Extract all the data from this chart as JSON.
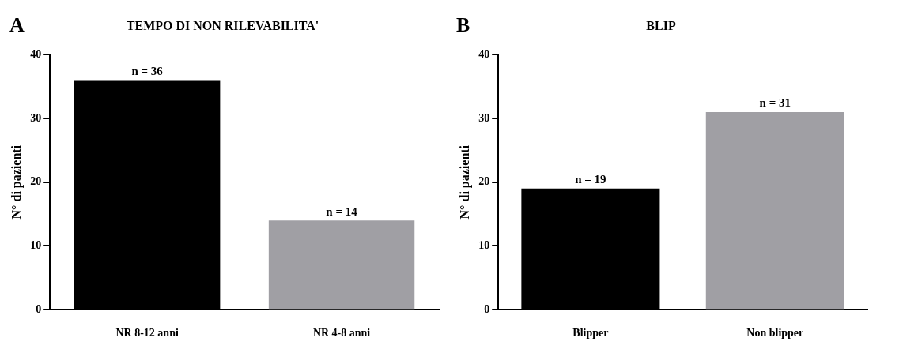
{
  "chart_data": [
    {
      "type": "bar",
      "title": "TEMPO DI NON RILEVABILITA'",
      "ylabel": "N° di pazienti",
      "categories": [
        "NR 8-12 anni",
        "NR 4-8 anni"
      ],
      "values": [
        36,
        14
      ],
      "colors": [
        "#000000",
        "#a09fa4"
      ],
      "value_labels": [
        "n = 36",
        "n = 14"
      ],
      "ylim": [
        0,
        40
      ],
      "yticks": [
        0,
        10,
        20,
        30,
        40
      ],
      "grid": false,
      "annotations": [
        "A"
      ]
    },
    {
      "type": "bar",
      "title": "BLIP",
      "ylabel": "N° di pazienti",
      "categories": [
        "Blipper",
        "Non blipper"
      ],
      "values": [
        19,
        31
      ],
      "colors": [
        "#000000",
        "#a09fa4"
      ],
      "value_labels": [
        "n = 19",
        "n = 31"
      ],
      "ylim": [
        0,
        40
      ],
      "yticks": [
        0,
        10,
        20,
        30,
        40
      ],
      "grid": false,
      "annotations": [
        "B"
      ]
    }
  ]
}
